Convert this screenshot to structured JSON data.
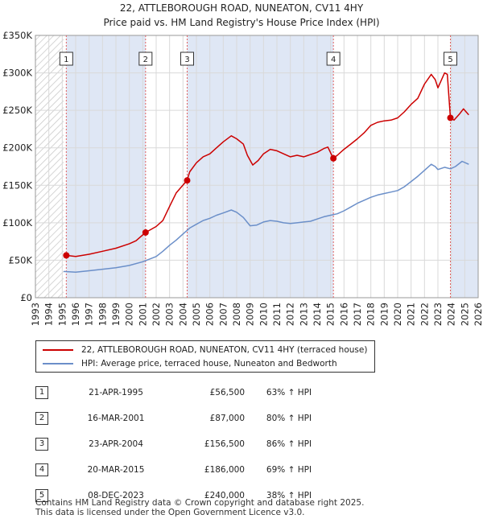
{
  "title_line1": "22, ATTLEBOROUGH ROAD, NUNEATON, CV11 4HY",
  "title_line2": "Price paid vs. HM Land Registry's House Price Index (HPI)",
  "chart_data": {
    "type": "line",
    "ylim": [
      0,
      350000
    ],
    "xlim": [
      1993,
      2026
    ],
    "y_ticks": [
      {
        "value": 0,
        "label": "£0"
      },
      {
        "value": 50000,
        "label": "£50K"
      },
      {
        "value": 100000,
        "label": "£100K"
      },
      {
        "value": 150000,
        "label": "£150K"
      },
      {
        "value": 200000,
        "label": "£200K"
      },
      {
        "value": 250000,
        "label": "£250K"
      },
      {
        "value": 300000,
        "label": "£300K"
      },
      {
        "value": 350000,
        "label": "£350K"
      }
    ],
    "x_ticks": [
      "1993",
      "1994",
      "1995",
      "1996",
      "1997",
      "1998",
      "1999",
      "2000",
      "2001",
      "2002",
      "2003",
      "2004",
      "2005",
      "2006",
      "2007",
      "2008",
      "2009",
      "2010",
      "2011",
      "2012",
      "2013",
      "2014",
      "2015",
      "2016",
      "2017",
      "2018",
      "2019",
      "2020",
      "2021",
      "2022",
      "2023",
      "2024",
      "2025",
      "2026"
    ],
    "hatch_ranges": [
      [
        1993,
        1995.1
      ],
      [
        2025.2,
        2026
      ]
    ],
    "series": [
      {
        "name": "22, ATTLEBOROUGH ROAD, NUNEATON, CV11 4HY (terraced house)",
        "color": "#cc0000",
        "points": [
          [
            1995.3,
            56500
          ],
          [
            1996,
            55000
          ],
          [
            1997,
            58000
          ],
          [
            1998,
            62000
          ],
          [
            1999,
            66000
          ],
          [
            2000,
            72000
          ],
          [
            2000.5,
            76000
          ],
          [
            2001.2,
            87000
          ],
          [
            2002,
            95000
          ],
          [
            2002.5,
            103000
          ],
          [
            2003,
            122000
          ],
          [
            2003.5,
            140000
          ],
          [
            2004.3,
            156500
          ],
          [
            2004.5,
            168000
          ],
          [
            2005,
            180000
          ],
          [
            2005.5,
            188000
          ],
          [
            2006,
            192000
          ],
          [
            2006.5,
            200000
          ],
          [
            2007,
            208000
          ],
          [
            2007.6,
            216000
          ],
          [
            2008,
            212000
          ],
          [
            2008.5,
            205000
          ],
          [
            2008.8,
            190000
          ],
          [
            2009.2,
            177000
          ],
          [
            2009.6,
            183000
          ],
          [
            2010,
            192000
          ],
          [
            2010.5,
            198000
          ],
          [
            2011,
            196000
          ],
          [
            2011.5,
            192000
          ],
          [
            2012,
            188000
          ],
          [
            2012.5,
            190000
          ],
          [
            2013,
            188000
          ],
          [
            2013.5,
            191000
          ],
          [
            2014,
            194000
          ],
          [
            2014.5,
            199000
          ],
          [
            2014.8,
            201000
          ],
          [
            2015.2,
            186000
          ],
          [
            2015.5,
            190000
          ],
          [
            2016,
            198000
          ],
          [
            2016.5,
            205000
          ],
          [
            2017,
            212000
          ],
          [
            2017.5,
            220000
          ],
          [
            2018,
            230000
          ],
          [
            2018.5,
            234000
          ],
          [
            2019,
            236000
          ],
          [
            2019.5,
            237000
          ],
          [
            2020,
            240000
          ],
          [
            2020.5,
            248000
          ],
          [
            2021,
            258000
          ],
          [
            2021.5,
            266000
          ],
          [
            2022,
            285000
          ],
          [
            2022.5,
            298000
          ],
          [
            2022.8,
            291000
          ],
          [
            2023,
            280000
          ],
          [
            2023.5,
            300000
          ],
          [
            2023.7,
            298000
          ],
          [
            2023.93,
            240000
          ],
          [
            2024.2,
            237000
          ],
          [
            2024.6,
            245000
          ],
          [
            2024.9,
            252000
          ],
          [
            2025.3,
            244000
          ]
        ]
      },
      {
        "name": "HPI: Average price, terraced house, Nuneaton and Bedworth",
        "color": "#6b8fc9",
        "points": [
          [
            1995.1,
            35000
          ],
          [
            1996,
            34000
          ],
          [
            1997,
            36000
          ],
          [
            1998,
            38000
          ],
          [
            1999,
            40000
          ],
          [
            2000,
            43000
          ],
          [
            2001,
            48000
          ],
          [
            2002,
            55000
          ],
          [
            2002.5,
            62000
          ],
          [
            2003,
            70000
          ],
          [
            2003.5,
            77000
          ],
          [
            2004,
            85000
          ],
          [
            2004.5,
            93000
          ],
          [
            2005,
            98000
          ],
          [
            2005.5,
            103000
          ],
          [
            2006,
            106000
          ],
          [
            2006.5,
            110000
          ],
          [
            2007,
            113000
          ],
          [
            2007.6,
            117000
          ],
          [
            2008,
            114000
          ],
          [
            2008.5,
            107000
          ],
          [
            2009,
            96000
          ],
          [
            2009.5,
            97000
          ],
          [
            2010,
            101000
          ],
          [
            2010.5,
            103000
          ],
          [
            2011,
            102000
          ],
          [
            2011.5,
            100000
          ],
          [
            2012,
            99000
          ],
          [
            2012.5,
            100000
          ],
          [
            2013,
            101000
          ],
          [
            2013.5,
            102000
          ],
          [
            2014,
            105000
          ],
          [
            2014.5,
            108000
          ],
          [
            2015,
            110000
          ],
          [
            2015.5,
            112000
          ],
          [
            2016,
            116000
          ],
          [
            2016.5,
            121000
          ],
          [
            2017,
            126000
          ],
          [
            2017.5,
            130000
          ],
          [
            2018,
            134000
          ],
          [
            2018.5,
            137000
          ],
          [
            2019,
            139000
          ],
          [
            2019.5,
            141000
          ],
          [
            2020,
            143000
          ],
          [
            2020.5,
            148000
          ],
          [
            2021,
            155000
          ],
          [
            2021.5,
            162000
          ],
          [
            2022,
            170000
          ],
          [
            2022.5,
            178000
          ],
          [
            2022.8,
            175000
          ],
          [
            2023,
            171000
          ],
          [
            2023.5,
            174000
          ],
          [
            2023.93,
            172000
          ],
          [
            2024.3,
            175000
          ],
          [
            2024.8,
            182000
          ],
          [
            2025.3,
            178000
          ]
        ]
      }
    ],
    "sales": [
      {
        "label": "1",
        "x": 1995.3,
        "price": 56500
      },
      {
        "label": "2",
        "x": 2001.21,
        "price": 87000
      },
      {
        "label": "3",
        "x": 2004.31,
        "price": 156500
      },
      {
        "label": "4",
        "x": 2015.21,
        "price": 186000
      },
      {
        "label": "5",
        "x": 2023.93,
        "price": 240000
      }
    ]
  },
  "legend": {
    "property": "22, ATTLEBOROUGH ROAD, NUNEATON, CV11 4HY (terraced house)",
    "hpi": "HPI: Average price, terraced house, Nuneaton and Bedworth"
  },
  "transactions": [
    {
      "num": "1",
      "date": "21-APR-1995",
      "price": "£56,500",
      "hpi": "63% ↑ HPI"
    },
    {
      "num": "2",
      "date": "16-MAR-2001",
      "price": "£87,000",
      "hpi": "80% ↑ HPI"
    },
    {
      "num": "3",
      "date": "23-APR-2004",
      "price": "£156,500",
      "hpi": "86% ↑ HPI"
    },
    {
      "num": "4",
      "date": "20-MAR-2015",
      "price": "£186,000",
      "hpi": "69% ↑ HPI"
    },
    {
      "num": "5",
      "date": "08-DEC-2023",
      "price": "£240,000",
      "hpi": "38% ↑ HPI"
    }
  ],
  "footer_line1": "Contains HM Land Registry data © Crown copyright and database right 2025.",
  "footer_line2": "This data is licensed under the Open Government Licence v3.0."
}
